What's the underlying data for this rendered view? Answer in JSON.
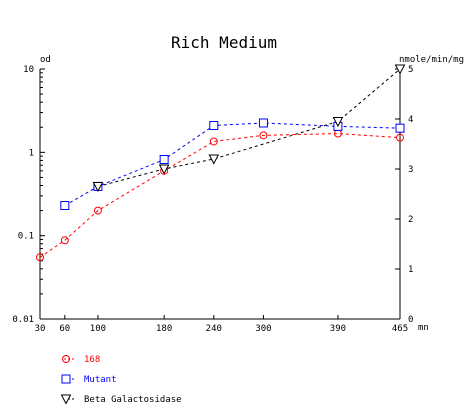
{
  "chart_data": {
    "type": "line",
    "title": "Rich Medium",
    "x": [
      30,
      60,
      100,
      180,
      240,
      300,
      390,
      465
    ],
    "x_tick_labels": [
      "30",
      "60",
      "100",
      "180",
      "240",
      "300",
      "390",
      "465"
    ],
    "xlabel_unit": "mn",
    "xlim": [
      30,
      465
    ],
    "y_left": {
      "label": "od",
      "scale": "log",
      "ylim": [
        0.01,
        10
      ],
      "ticks": [
        0.01,
        0.1,
        1,
        10
      ],
      "tick_labels": [
        "0.01",
        "0.1",
        "1",
        "10"
      ]
    },
    "y_right": {
      "label": "nmole/min/mg",
      "scale": "linear",
      "ylim": [
        0,
        5
      ],
      "ticks": [
        0,
        1,
        2,
        3,
        4,
        5
      ],
      "tick_labels": [
        "0",
        "1",
        "2",
        "3",
        "4",
        "5"
      ]
    },
    "grid": false,
    "legend_position": "bottom-left",
    "series": [
      {
        "name": "168",
        "axis": "left",
        "marker": "circle",
        "color": "#ff0000",
        "x": [
          30,
          60,
          100,
          180,
          240,
          300,
          390,
          465
        ],
        "values": [
          0.055,
          0.088,
          0.2,
          0.6,
          1.35,
          1.6,
          1.68,
          1.5
        ]
      },
      {
        "name": "Mutant",
        "axis": "left",
        "marker": "square",
        "color": "#0000ff",
        "x": [
          60,
          100,
          180,
          240,
          300,
          390,
          465
        ],
        "values": [
          0.23,
          0.39,
          0.82,
          2.1,
          2.25,
          2.05,
          1.95
        ]
      },
      {
        "name": "Beta Galactosidase",
        "axis": "right",
        "marker": "triangle-down",
        "color": "#000000",
        "x": [
          100,
          180,
          240,
          390,
          465
        ],
        "values": [
          2.65,
          3.0,
          3.2,
          3.95,
          5.0
        ]
      }
    ]
  }
}
